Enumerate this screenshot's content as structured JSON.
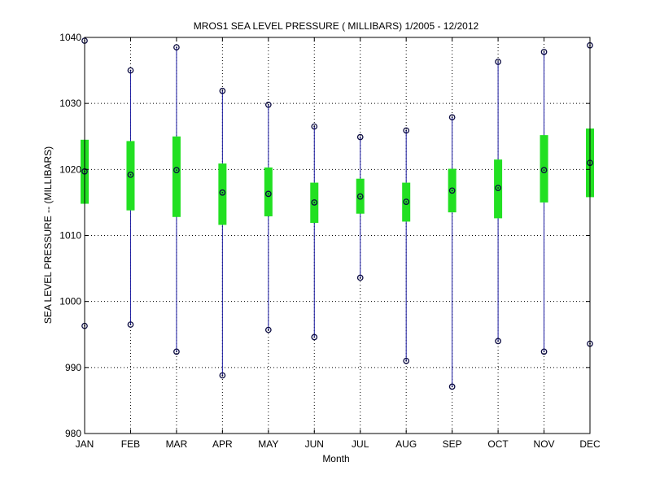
{
  "chart_data": {
    "type": "box",
    "title": "MROS1  SEA LEVEL PRESSURE ( MILLIBARS) 1/2005 - 12/2012",
    "xlabel": "Month",
    "ylabel": "SEA LEVEL PRESSURE -- (MILLIBARS)",
    "ylim": [
      980,
      1040
    ],
    "yticks": [
      980,
      990,
      1000,
      1010,
      1020,
      1030,
      1040
    ],
    "grid": true,
    "categories": [
      "JAN",
      "FEB",
      "MAR",
      "APR",
      "MAY",
      "JUN",
      "JUL",
      "AUG",
      "SEP",
      "OCT",
      "NOV",
      "DEC"
    ],
    "min": [
      996.3,
      996.5,
      992.4,
      988.8,
      995.7,
      994.6,
      1003.6,
      991.0,
      987.1,
      994.0,
      992.4,
      993.6
    ],
    "q1": [
      1014.8,
      1013.8,
      1012.8,
      1011.6,
      1012.9,
      1011.9,
      1013.3,
      1012.1,
      1013.5,
      1012.6,
      1015.0,
      1015.8
    ],
    "mean": [
      1019.7,
      1019.2,
      1019.9,
      1016.5,
      1016.3,
      1015.0,
      1015.9,
      1015.1,
      1016.8,
      1017.2,
      1019.9,
      1021.0
    ],
    "q3": [
      1024.5,
      1024.3,
      1025.0,
      1020.9,
      1020.3,
      1018.0,
      1018.6,
      1018.0,
      1020.1,
      1021.5,
      1025.2,
      1026.2
    ],
    "max": [
      1039.5,
      1035.0,
      1038.5,
      1031.9,
      1029.8,
      1026.5,
      1024.9,
      1025.9,
      1027.9,
      1036.3,
      1037.8,
      1038.8
    ],
    "colors": {
      "whisker": "#1a1aa0",
      "box": "#22e022",
      "marker": "#0a0a40",
      "axis": "#000000",
      "grid": "#000000"
    }
  }
}
